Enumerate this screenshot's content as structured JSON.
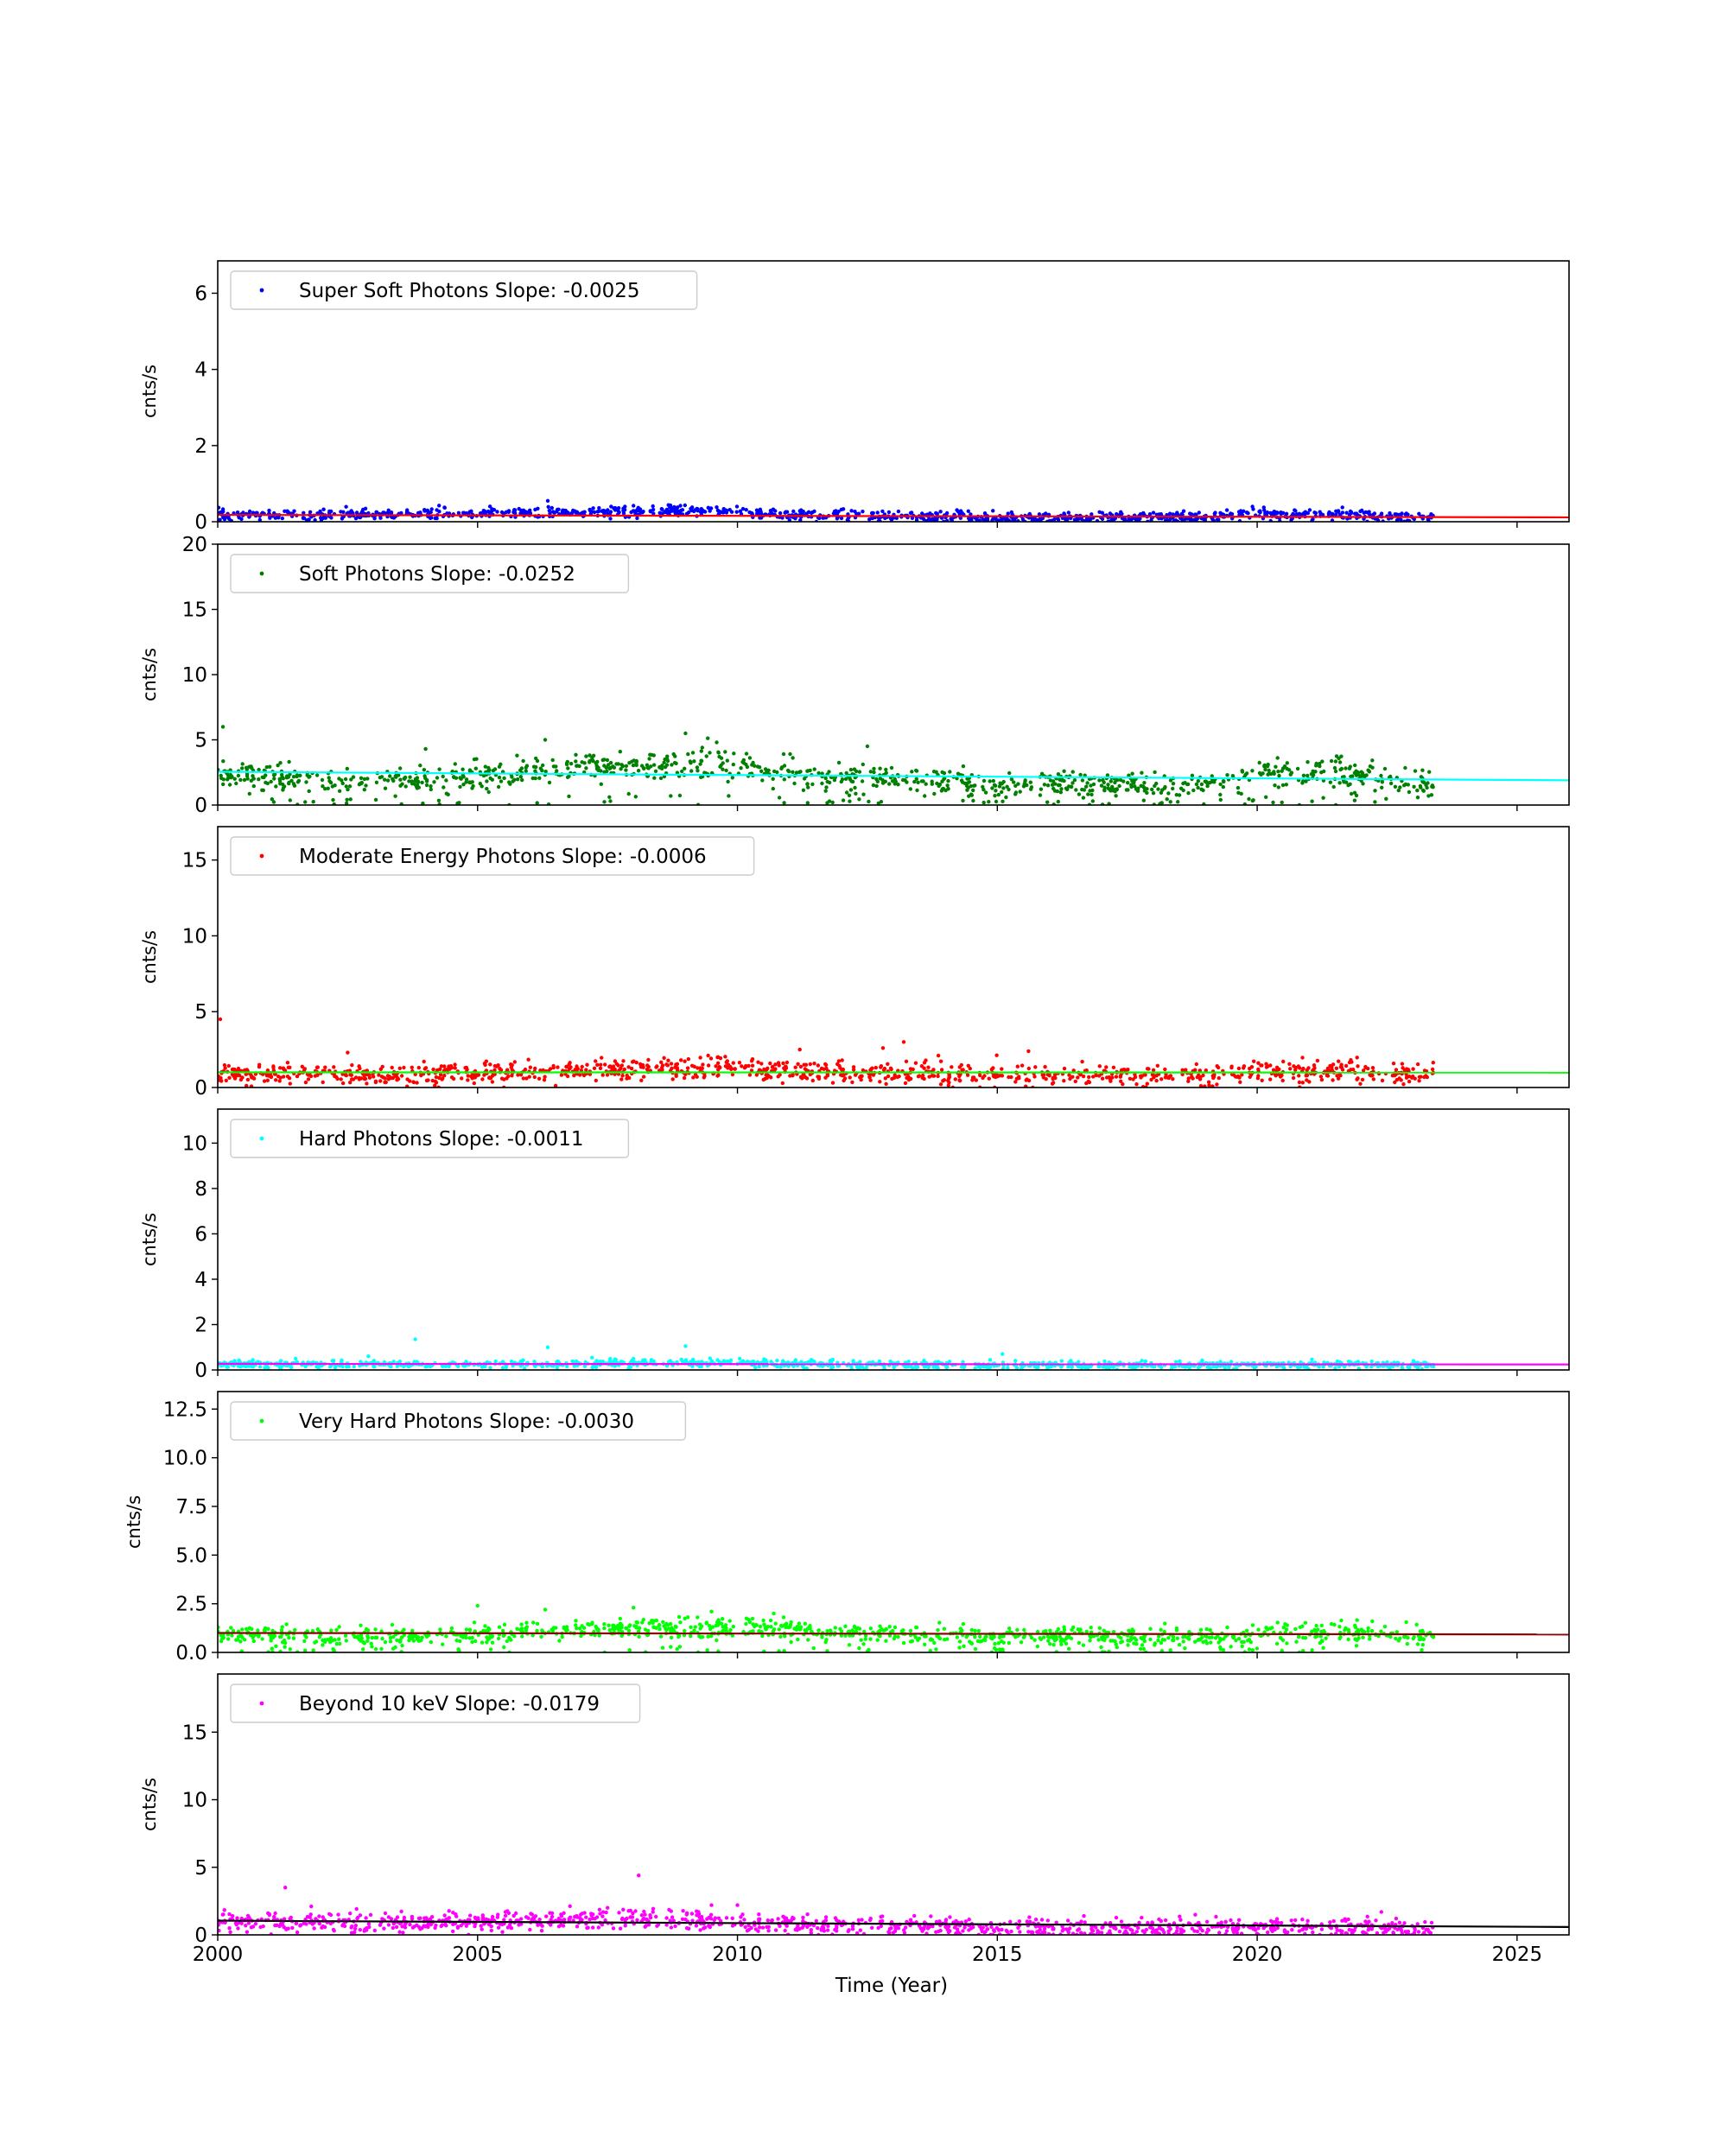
{
  "figure": {
    "xlabel": "Time (Year)",
    "xlim": [
      2000,
      2026
    ],
    "xticks": [
      2000,
      2005,
      2010,
      2015,
      2020,
      2025
    ]
  },
  "chart_data": [
    {
      "type": "scatter",
      "legend": "Super Soft Photons Slope: -0.0025",
      "ylabel": "cnts/s",
      "ylim": [
        0,
        6.85
      ],
      "yticks": [
        0,
        2,
        4,
        6
      ],
      "ytick_labels": [
        "0",
        "2",
        "4",
        "6"
      ],
      "point_color": "#0000ff",
      "fit_color": "#ff0000",
      "legend_placement": "upper-left",
      "grid": false,
      "fit": {
        "intercept": 0.18,
        "slope": -0.0025
      },
      "series_profile": [
        [
          2000.0,
          0.18
        ],
        [
          2002.0,
          0.17
        ],
        [
          2004.0,
          0.2
        ],
        [
          2005.5,
          0.22
        ],
        [
          2007.0,
          0.24
        ],
        [
          2008.5,
          0.27
        ],
        [
          2009.5,
          0.28
        ],
        [
          2011.0,
          0.18
        ],
        [
          2013.0,
          0.14
        ],
        [
          2015.0,
          0.12
        ],
        [
          2017.0,
          0.1
        ],
        [
          2019.0,
          0.12
        ],
        [
          2020.0,
          0.21
        ],
        [
          2021.5,
          0.18
        ],
        [
          2023.4,
          0.12
        ]
      ],
      "spread": 0.07,
      "outliers": [
        [
          2006.35,
          0.55
        ],
        [
          2008.0,
          0.42
        ],
        [
          2009.6,
          0.38
        ],
        [
          2012.0,
          0.32
        ]
      ]
    },
    {
      "type": "scatter",
      "legend": "Soft Photons Slope: -0.0252",
      "ylabel": "cnts/s",
      "ylim": [
        0,
        20
      ],
      "yticks": [
        0,
        5,
        10,
        15,
        20
      ],
      "ytick_labels": [
        "0",
        "5",
        "10",
        "15",
        "20"
      ],
      "point_color": "#008000",
      "fit_color": "#00ffff",
      "legend_placement": "upper-left",
      "grid": false,
      "fit": {
        "intercept": 2.55,
        "slope": -0.0252
      },
      "series_profile": [
        [
          2000.0,
          2.3
        ],
        [
          2001.5,
          1.9
        ],
        [
          2003.0,
          1.9
        ],
        [
          2004.0,
          1.9
        ],
        [
          2005.5,
          2.2
        ],
        [
          2007.0,
          2.8
        ],
        [
          2008.5,
          3.0
        ],
        [
          2009.5,
          3.3
        ],
        [
          2011.0,
          2.4
        ],
        [
          2013.0,
          1.8
        ],
        [
          2015.0,
          1.5
        ],
        [
          2016.5,
          1.6
        ],
        [
          2018.0,
          1.5
        ],
        [
          2019.0,
          1.6
        ],
        [
          2020.0,
          2.5
        ],
        [
          2021.5,
          2.4
        ],
        [
          2022.5,
          1.9
        ],
        [
          2023.4,
          1.3
        ]
      ],
      "spread": 0.55,
      "low_scatter": true,
      "outliers": [
        [
          2000.1,
          6.0
        ],
        [
          2006.3,
          5.0
        ],
        [
          2009.0,
          5.5
        ],
        [
          2009.6,
          4.8
        ],
        [
          2012.5,
          4.5
        ],
        [
          2004.0,
          4.3
        ]
      ]
    },
    {
      "type": "scatter",
      "legend": "Moderate Energy Photons Slope: -0.0006",
      "ylabel": "cnts/s",
      "ylim": [
        0,
        17.2
      ],
      "yticks": [
        0,
        5,
        10,
        15
      ],
      "ytick_labels": [
        "0",
        "5",
        "10",
        "15"
      ],
      "point_color": "#ff0000",
      "fit_color": "#00ff00",
      "legend_placement": "upper-left",
      "grid": false,
      "fit": {
        "intercept": 1.0,
        "slope": -0.0006
      },
      "series_profile": [
        [
          2000.0,
          0.9
        ],
        [
          2003.0,
          0.8
        ],
        [
          2005.5,
          0.95
        ],
        [
          2007.0,
          1.1
        ],
        [
          2008.5,
          1.2
        ],
        [
          2009.5,
          1.3
        ],
        [
          2011.0,
          1.1
        ],
        [
          2013.0,
          0.9
        ],
        [
          2015.0,
          0.8
        ],
        [
          2017.0,
          0.8
        ],
        [
          2019.0,
          0.75
        ],
        [
          2020.0,
          1.1
        ],
        [
          2021.5,
          1.1
        ],
        [
          2023.4,
          0.9
        ]
      ],
      "spread": 0.35,
      "outliers": [
        [
          2000.05,
          4.5
        ],
        [
          2013.2,
          3.0
        ],
        [
          2012.8,
          2.6
        ],
        [
          2015.6,
          2.4
        ],
        [
          2011.2,
          2.5
        ],
        [
          2002.5,
          2.3
        ]
      ]
    },
    {
      "type": "scatter",
      "legend": "Hard Photons Slope: -0.0011",
      "ylabel": "cnts/s",
      "ylim": [
        0,
        11.5
      ],
      "yticks": [
        0,
        2,
        4,
        6,
        8,
        10
      ],
      "ytick_labels": [
        "0",
        "2",
        "4",
        "6",
        "8",
        "10"
      ],
      "point_color": "#00ffff",
      "fit_color": "#ff00ff",
      "legend_placement": "upper-left",
      "grid": false,
      "fit": {
        "intercept": 0.27,
        "slope": -0.0011
      },
      "series_profile": [
        [
          2000.0,
          0.25
        ],
        [
          2005.0,
          0.25
        ],
        [
          2008.5,
          0.3
        ],
        [
          2010.0,
          0.3
        ],
        [
          2013.0,
          0.22
        ],
        [
          2016.0,
          0.2
        ],
        [
          2019.0,
          0.2
        ],
        [
          2020.5,
          0.25
        ],
        [
          2023.4,
          0.22
        ]
      ],
      "spread": 0.08,
      "outliers": [
        [
          2003.8,
          1.35
        ],
        [
          2006.35,
          1.0
        ],
        [
          2009.0,
          1.05
        ],
        [
          2015.1,
          0.7
        ],
        [
          2002.9,
          0.6
        ],
        [
          2001.5,
          0.5
        ]
      ]
    },
    {
      "type": "scatter",
      "legend": "Very Hard Photons Slope: -0.0030",
      "ylabel": "cnts/s",
      "ylim": [
        0,
        13.4
      ],
      "yticks": [
        0,
        2.5,
        5,
        7.5,
        10,
        12.5
      ],
      "ytick_labels": [
        "0.0",
        "2.5",
        "5.0",
        "7.5",
        "10.0",
        "12.5"
      ],
      "point_color": "#00ff00",
      "fit_color": "#8b0000",
      "legend_placement": "upper-left",
      "grid": false,
      "fit": {
        "intercept": 1.0,
        "slope": -0.003
      },
      "series_profile": [
        [
          2000.0,
          0.9
        ],
        [
          2003.0,
          0.8
        ],
        [
          2005.0,
          0.9
        ],
        [
          2006.5,
          1.1
        ],
        [
          2008.5,
          1.25
        ],
        [
          2010.0,
          1.3
        ],
        [
          2011.5,
          1.05
        ],
        [
          2013.0,
          0.9
        ],
        [
          2015.0,
          0.8
        ],
        [
          2016.5,
          0.85
        ],
        [
          2018.0,
          0.75
        ],
        [
          2019.5,
          0.75
        ],
        [
          2020.5,
          1.05
        ],
        [
          2022.0,
          1.0
        ],
        [
          2023.4,
          0.8
        ]
      ],
      "spread": 0.25,
      "low_scatter": true,
      "outliers": [
        [
          2005.0,
          2.4
        ],
        [
          2006.3,
          2.2
        ],
        [
          2009.5,
          2.1
        ],
        [
          2010.7,
          2.0
        ],
        [
          2008.0,
          2.3
        ]
      ]
    },
    {
      "type": "scatter",
      "legend": "Beyond 10 keV Slope: -0.0179",
      "ylabel": "cnts/s",
      "ylim": [
        0,
        19.3
      ],
      "yticks": [
        0,
        5,
        10,
        15
      ],
      "ytick_labels": [
        "0",
        "5",
        "10",
        "15"
      ],
      "point_color": "#ff00ff",
      "fit_color": "#000000",
      "legend_placement": "upper-left",
      "grid": false,
      "fit": {
        "intercept": 1.05,
        "slope": -0.0179
      },
      "series_profile": [
        [
          2000.0,
          1.0
        ],
        [
          2002.0,
          0.9
        ],
        [
          2004.0,
          0.9
        ],
        [
          2005.5,
          1.0
        ],
        [
          2007.0,
          1.2
        ],
        [
          2008.5,
          1.3
        ],
        [
          2010.0,
          0.9
        ],
        [
          2012.0,
          0.7
        ],
        [
          2015.0,
          0.55
        ],
        [
          2018.0,
          0.45
        ],
        [
          2020.0,
          0.6
        ],
        [
          2022.0,
          0.55
        ],
        [
          2023.4,
          0.5
        ]
      ],
      "spread": 0.35,
      "outliers": [
        [
          2001.3,
          3.5
        ],
        [
          2008.1,
          4.4
        ],
        [
          2009.5,
          2.2
        ],
        [
          2010.0,
          2.2
        ],
        [
          2007.5,
          2.0
        ],
        [
          2001.8,
          2.1
        ]
      ]
    }
  ]
}
